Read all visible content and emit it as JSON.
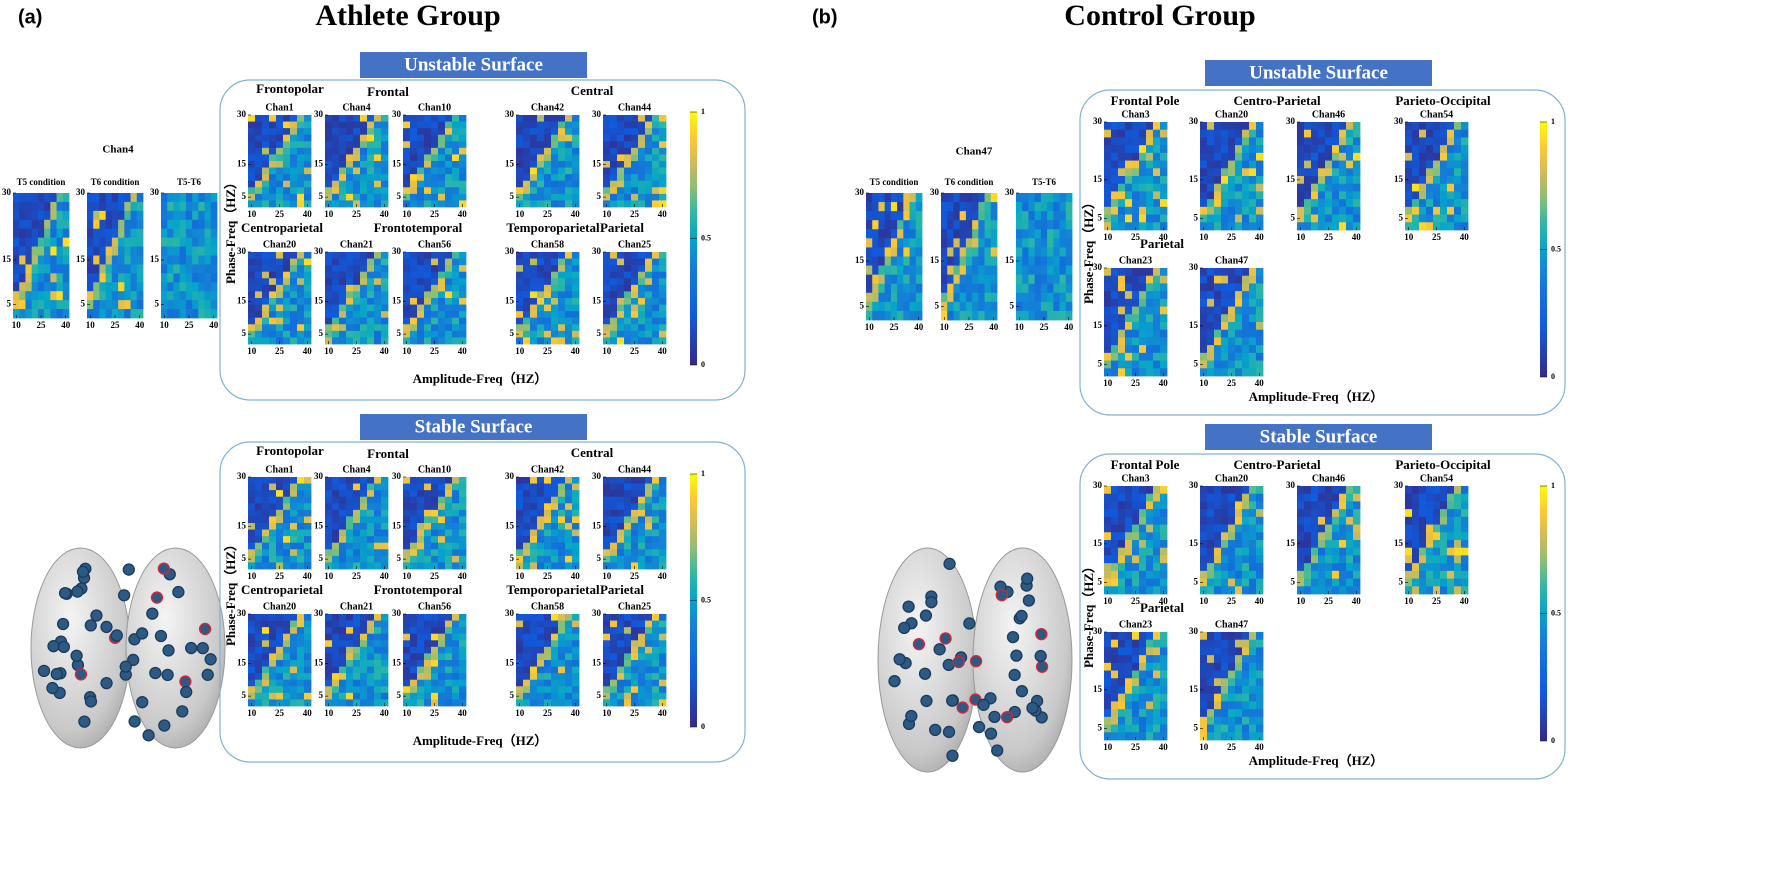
{
  "panels": [
    {
      "label": "(a)",
      "title": "Athlete Group",
      "axes": {
        "xlim": [
          8,
          42
        ],
        "ylim": [
          2,
          30
        ],
        "xticks": [
          10,
          25,
          40
        ],
        "yticks": [
          30,
          15,
          5
        ],
        "clim": [
          0,
          1
        ],
        "colorbar_ticks": [
          1,
          0.5,
          0
        ]
      },
      "single": {
        "channel": "Chan4",
        "conditions": [
          "T5 condition",
          "T6 condition",
          "T5-T6"
        ]
      },
      "surfaces": [
        {
          "title": "Unstable Surface",
          "ylabel": "Phase-Freq（HZ）",
          "xlabel": "Amplitude-Freq（HZ）",
          "regions": [
            {
              "name": "Frontopolar",
              "channels": [
                "Chan1"
              ]
            },
            {
              "name": "Frontal",
              "channels": [
                "Chan4",
                "Chan10"
              ]
            },
            {
              "name": "Central",
              "channels": [
                "Chan42",
                "Chan44"
              ]
            },
            {
              "name": "Centroparietal",
              "channels": [
                "Chan20",
                "Chan21"
              ]
            },
            {
              "name": "Frontotemporal",
              "channels": [
                "Chan56"
              ]
            },
            {
              "name": "Temporoparietal",
              "channels": [
                "Chan58"
              ]
            },
            {
              "name": "Parietal",
              "channels": [
                "Chan25"
              ]
            }
          ]
        },
        {
          "title": "Stable Surface",
          "ylabel": "Phase-Freq（HZ）",
          "xlabel": "Amplitude-Freq（HZ）",
          "regions": [
            {
              "name": "Frontopolar",
              "channels": [
                "Chan1"
              ]
            },
            {
              "name": "Frontal",
              "channels": [
                "Chan4",
                "Chan10"
              ]
            },
            {
              "name": "Central",
              "channels": [
                "Chan42",
                "Chan44"
              ]
            },
            {
              "name": "Centroparietal",
              "channels": [
                "Chan20",
                "Chan21"
              ]
            },
            {
              "name": "Frontotemporal",
              "channels": [
                "Chan56"
              ]
            },
            {
              "name": "Temporoparietal",
              "channels": [
                "Chan58"
              ]
            },
            {
              "name": "Parietal",
              "channels": [
                "Chan25"
              ]
            }
          ]
        }
      ]
    },
    {
      "label": "(b)",
      "title": "Control Group",
      "axes": {
        "xlim": [
          8,
          42
        ],
        "ylim": [
          2,
          30
        ],
        "xticks": [
          10,
          25,
          40
        ],
        "yticks": [
          30,
          15,
          5
        ],
        "clim": [
          0,
          1
        ],
        "colorbar_ticks": [
          1,
          0.5,
          0
        ]
      },
      "single": {
        "channel": "Chan47",
        "conditions": [
          "T5 condition",
          "T6 condition",
          "T5-T6"
        ]
      },
      "surfaces": [
        {
          "title": "Unstable Surface",
          "ylabel": "Phase-Freq（HZ）",
          "xlabel": "Amplitude-Freq（HZ）",
          "regions": [
            {
              "name": "Frontal Pole",
              "channels": [
                "Chan3"
              ]
            },
            {
              "name": "Centro-Parietal",
              "channels": [
                "Chan20",
                "Chan46"
              ]
            },
            {
              "name": "Parieto-Occipital",
              "channels": [
                "Chan54"
              ]
            },
            {
              "name": "Parietal",
              "channels": [
                "Chan23",
                "Chan47"
              ]
            }
          ]
        },
        {
          "title": "Stable Surface",
          "ylabel": "Phase-Freq（HZ）",
          "xlabel": "Amplitude-Freq（HZ）",
          "regions": [
            {
              "name": "Frontal Pole",
              "channels": [
                "Chan3"
              ]
            },
            {
              "name": "Centro-Parietal",
              "channels": [
                "Chan20",
                "Chan46"
              ]
            },
            {
              "name": "Parieto-Occipital",
              "channels": [
                "Chan54"
              ]
            },
            {
              "name": "Parietal",
              "channels": [
                "Chan23",
                "Chan47"
              ]
            }
          ]
        }
      ]
    }
  ]
}
